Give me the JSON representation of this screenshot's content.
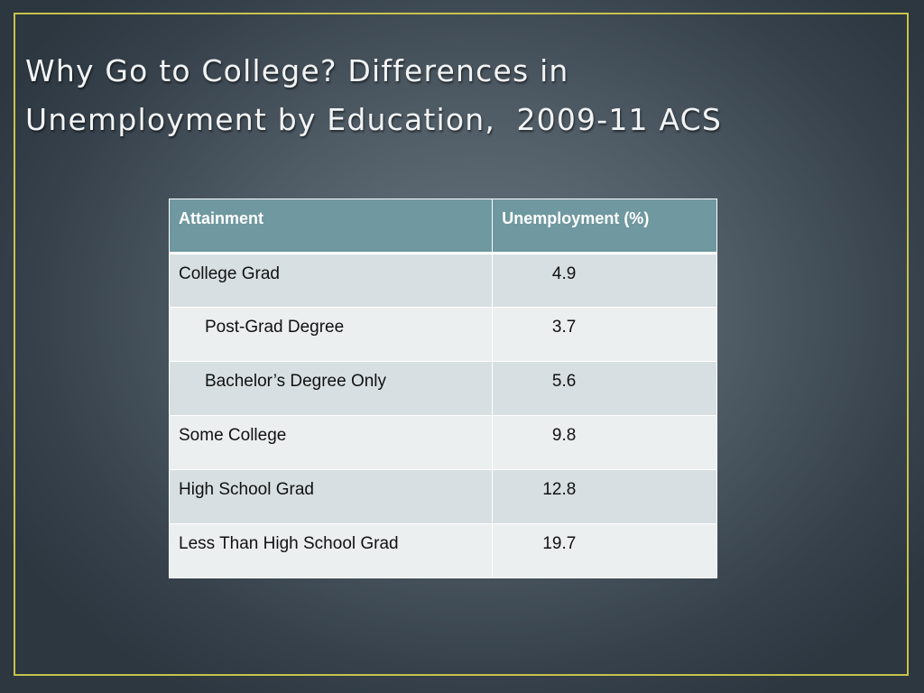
{
  "slide": {
    "title": "Why Go to College? Differences in\nUnemployment by Education,  2009-11 ACS"
  },
  "table": {
    "headers": [
      "Attainment",
      "Unemployment (%)"
    ],
    "rows": [
      {
        "label": "College Grad",
        "value": "4.9",
        "indent": false
      },
      {
        "label": "Post-Grad Degree",
        "value": "3.7",
        "indent": true
      },
      {
        "label": "Bachelor’s Degree Only",
        "value": "5.6",
        "indent": true
      },
      {
        "label": "Some College",
        "value": "9.8",
        "indent": false
      },
      {
        "label": "High School Grad",
        "value": "12.8",
        "indent": false
      },
      {
        "label": "Less Than High School Grad",
        "value": "19.7",
        "indent": false
      }
    ]
  },
  "colors": {
    "frame": "#c8c24a",
    "header_bg": "#6f98a0",
    "row_dark": "#d7dfe2",
    "row_light": "#eceff0"
  }
}
